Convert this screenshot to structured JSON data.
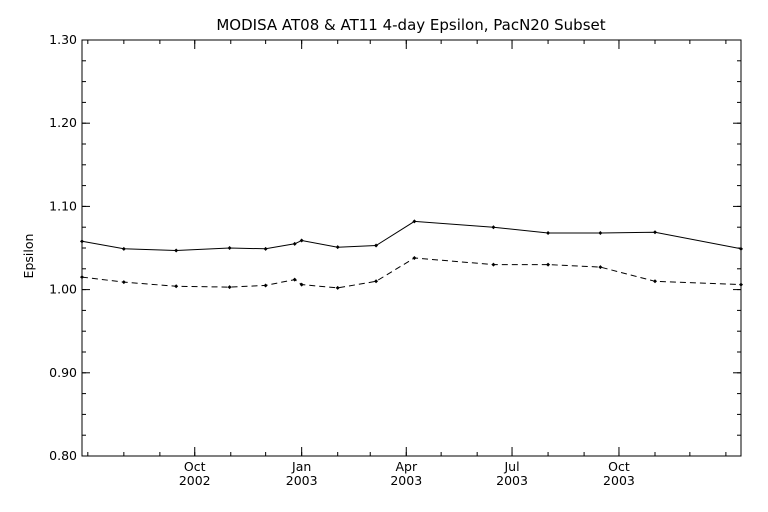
{
  "chart_data": {
    "type": "line",
    "title": "MODISA AT08 & AT11 4-day Epsilon, PacN20 Subset",
    "xlabel": "",
    "ylabel": "Epsilon",
    "ylim": [
      0.8,
      1.3
    ],
    "xlim": [
      "2002-06-26",
      "2004-01-14"
    ],
    "yticks": [
      0.8,
      0.9,
      1.0,
      1.1,
      1.2,
      1.3
    ],
    "ytick_labels": [
      "0.80",
      "0.90",
      "1.00",
      "1.10",
      "1.20",
      "1.30"
    ],
    "xticks": [
      {
        "date": "2002-10-01",
        "month": "Oct",
        "year": "2002"
      },
      {
        "date": "2003-01-01",
        "month": "Jan",
        "year": "2003"
      },
      {
        "date": "2003-04-01",
        "month": "Apr",
        "year": "2003"
      },
      {
        "date": "2003-07-01",
        "month": "Jul",
        "year": "2003"
      },
      {
        "date": "2003-10-01",
        "month": "Oct",
        "year": "2003"
      }
    ],
    "grid": false,
    "legend": "none",
    "series": [
      {
        "style": "solid",
        "color": "#000000",
        "x": [
          "2002-06-26",
          "2002-08-01",
          "2002-09-15",
          "2002-10-31",
          "2002-12-01",
          "2002-12-26",
          "2003-01-01",
          "2003-02-01",
          "2003-03-06",
          "2003-04-08",
          "2003-06-15",
          "2003-08-01",
          "2003-09-15",
          "2003-11-01",
          "2004-01-14"
        ],
        "y": [
          1.058,
          1.049,
          1.047,
          1.05,
          1.049,
          1.055,
          1.059,
          1.051,
          1.053,
          1.082,
          1.075,
          1.068,
          1.068,
          1.069,
          1.049
        ]
      },
      {
        "style": "dashed",
        "color": "#000000",
        "x": [
          "2002-06-26",
          "2002-08-01",
          "2002-09-15",
          "2002-10-31",
          "2002-12-01",
          "2002-12-26",
          "2003-01-01",
          "2003-02-01",
          "2003-03-06",
          "2003-04-08",
          "2003-06-15",
          "2003-08-01",
          "2003-09-15",
          "2003-11-01",
          "2004-01-14"
        ],
        "y": [
          1.015,
          1.009,
          1.004,
          1.003,
          1.005,
          1.012,
          1.006,
          1.002,
          1.01,
          1.038,
          1.03,
          1.03,
          1.027,
          1.01,
          1.006
        ]
      }
    ]
  }
}
